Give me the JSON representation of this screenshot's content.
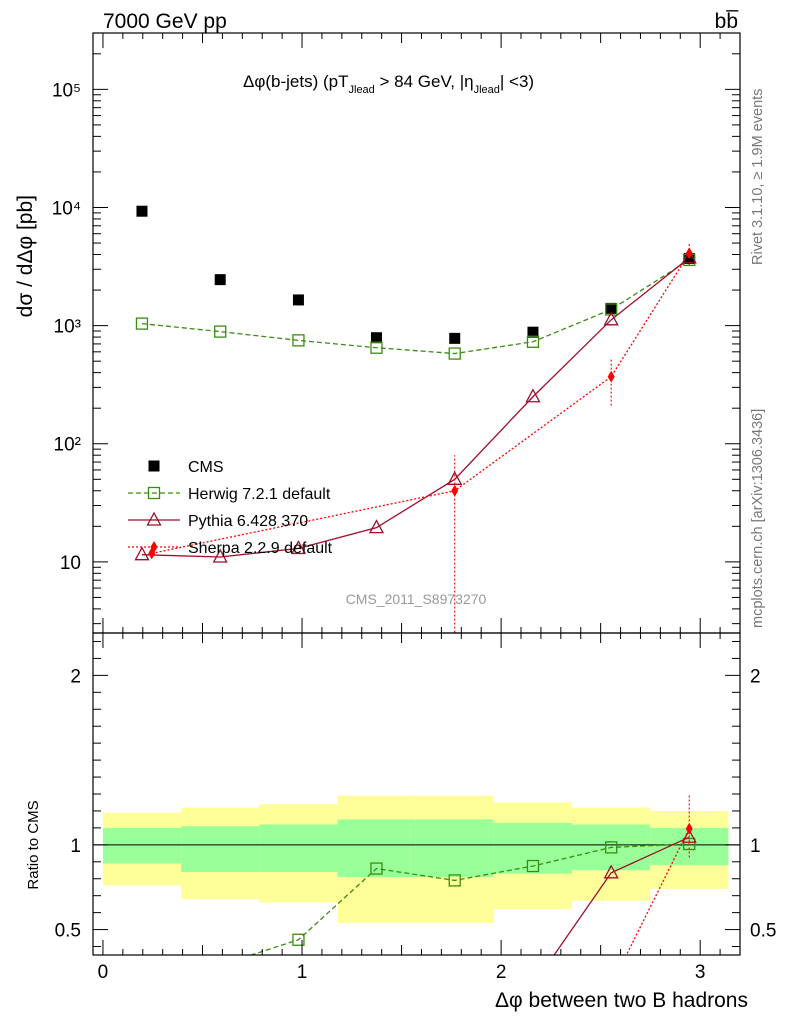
{
  "header": {
    "energy_label": "7000 GeV pp",
    "process_label": "bb̅"
  },
  "side_labels": {
    "rivet": "Rivet 3.1.10, ≥ 1.9M events",
    "mcplots": "mcplots.cern.ch [arXiv:1306.3436]"
  },
  "analysis_id": "CMS_2011_S8973270",
  "colors": {
    "cms": "#000000",
    "herwig": "#3a8c12",
    "pythia": "#9e0e2a",
    "sherpa": "#ff0000",
    "band_outer": "#ffff99",
    "band_inner": "#99ff99"
  },
  "chart_data": [
    {
      "type": "scatter",
      "panel": "main",
      "title": "Δφ(b-jets) (pT_Jlead > 84 GeV, |η_Jlead| <3)",
      "title_parts": {
        "a": "Δφ(b-jets) (pT",
        "sub1": "Jlead",
        "b": " >  84 GeV, |η",
        "sub2": "Jlead",
        "c": "| <3)"
      },
      "ylabel": "dσ / dΔφ [pb]",
      "y_log": true,
      "ylim": [
        2.5,
        300000
      ],
      "xlim": [
        -0.05,
        3.2
      ],
      "y_ticks": [
        {
          "v": 10,
          "label": "10"
        },
        {
          "v": 100,
          "label": "10²"
        },
        {
          "v": 1000,
          "label": "10³"
        },
        {
          "v": 10000,
          "label": "10⁴"
        },
        {
          "v": 100000,
          "label": "10⁵"
        }
      ],
      "legend_position": "lower-left",
      "series": [
        {
          "name": "CMS",
          "key": "cms",
          "x": [
            0.196,
            0.589,
            0.982,
            1.374,
            1.767,
            2.16,
            2.553,
            2.945
          ],
          "y": [
            9300,
            2450,
            1650,
            790,
            780,
            880,
            1400,
            3700
          ]
        },
        {
          "name": "Herwig 7.2.1 default",
          "key": "herwig",
          "x": [
            0.196,
            0.589,
            0.982,
            1.374,
            1.767,
            2.16,
            2.553,
            2.945
          ],
          "y": [
            1040,
            890,
            750,
            650,
            580,
            730,
            1370,
            3600
          ]
        },
        {
          "name": "Pythia 6.428 370",
          "key": "pythia",
          "x": [
            0.196,
            0.589,
            0.982,
            1.374,
            1.767,
            2.16,
            2.553,
            2.945
          ],
          "y": [
            11.5,
            11,
            13,
            19.5,
            50,
            250,
            1120,
            3750
          ]
        },
        {
          "name": "Sherpa 2.2.9 default",
          "key": "sherpa",
          "x": [
            0.245,
            1.767,
            2.553,
            2.945
          ],
          "y": [
            11.8,
            40,
            370,
            4100
          ],
          "y_err_low": [
            0.5,
            39,
            160,
            900
          ],
          "y_err_high": [
            0.5,
            40,
            160,
            900
          ]
        }
      ]
    },
    {
      "type": "line",
      "panel": "ratio",
      "ylabel": "Ratio to CMS",
      "ylim": [
        0.35,
        2.25
      ],
      "xlim": [
        -0.05,
        3.2
      ],
      "xlabel": "Δφ between two B hadrons",
      "y_ticks": [
        {
          "v": 0.5,
          "label": "0.5"
        },
        {
          "v": 1,
          "label": "1"
        },
        {
          "v": 2,
          "label": "2"
        }
      ],
      "x_ticks": [
        {
          "v": 0,
          "label": "0"
        },
        {
          "v": 1,
          "label": "1"
        },
        {
          "v": 2,
          "label": "2"
        },
        {
          "v": 3,
          "label": "3"
        }
      ],
      "bands": {
        "edges": [
          0,
          0.393,
          0.785,
          1.178,
          1.571,
          1.963,
          2.356,
          2.749,
          3.142
        ],
        "outer_low": [
          0.76,
          0.68,
          0.66,
          0.54,
          0.54,
          0.62,
          0.67,
          0.74
        ],
        "outer_high": [
          1.19,
          1.22,
          1.24,
          1.29,
          1.29,
          1.25,
          1.22,
          1.2
        ],
        "inner_low": [
          0.89,
          0.84,
          0.84,
          0.81,
          0.81,
          0.83,
          0.85,
          0.88
        ],
        "inner_high": [
          1.1,
          1.11,
          1.12,
          1.15,
          1.15,
          1.13,
          1.12,
          1.1
        ]
      },
      "series": [
        {
          "name": "Herwig 7.2.1 default",
          "key": "herwig",
          "x": [
            0.589,
            0.982,
            1.374,
            1.767,
            2.16,
            2.553,
            2.945
          ],
          "y": [
            0.29,
            0.44,
            0.86,
            0.79,
            0.875,
            0.985,
            1.005
          ]
        },
        {
          "name": "Pythia 6.428 370",
          "key": "pythia",
          "x": [
            2.16,
            2.553,
            2.945
          ],
          "y": [
            0.17,
            0.835,
            1.045
          ]
        },
        {
          "name": "Sherpa 2.2.9 default",
          "key": "sherpa",
          "x": [
            2.553,
            2.945
          ],
          "y": [
            0.17,
            1.095
          ],
          "y_err_low": [
            0,
            0.17
          ],
          "y_err_high": [
            0,
            0.2
          ]
        }
      ]
    }
  ]
}
